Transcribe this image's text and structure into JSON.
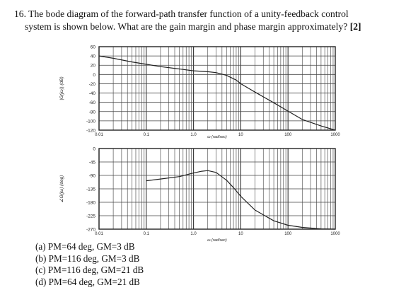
{
  "question": {
    "line1": "16. The bode diagram of the forward-path transfer function of a unity-feedback control",
    "line2": "system is shown below. What are the gain margin and phase margin approximately?",
    "marks": "[2]"
  },
  "chart_data": [
    {
      "type": "line",
      "xscale": "log",
      "xlim": [
        0.01,
        1000
      ],
      "ylim": [
        -120,
        60
      ],
      "yticks": [
        60,
        40,
        20,
        0,
        -20,
        -40,
        -60,
        -80,
        -100,
        -120
      ],
      "xticks": [
        0.01,
        0.1,
        1.0,
        10,
        100,
        1000
      ],
      "xtick_labels": [
        "0.01",
        "0.1",
        "1.0",
        "10",
        "100",
        "1000"
      ],
      "ylabel": "|G(jω)| (dB)",
      "xlabel": "ω (rad/sec)",
      "grid": true,
      "series": [
        {
          "x": [
            0.01,
            0.02,
            0.05,
            0.1,
            0.2,
            0.5,
            1,
            2,
            3,
            5,
            8,
            10,
            20,
            50,
            100,
            200,
            500,
            1000
          ],
          "y": [
            40,
            35,
            27,
            22,
            17,
            12,
            8,
            6,
            4,
            -2,
            -12,
            -20,
            -38,
            -61,
            -79,
            -97,
            -111,
            -120
          ]
        }
      ]
    },
    {
      "type": "line",
      "xscale": "log",
      "xlim": [
        0.01,
        1000
      ],
      "ylim": [
        -270,
        0
      ],
      "yticks": [
        0,
        -45,
        -90,
        -135,
        -180,
        -225,
        -270
      ],
      "xticks": [
        0.01,
        0.1,
        1.0,
        10,
        100,
        1000
      ],
      "xtick_labels": [
        "0.01",
        "0.1",
        "1.0",
        "10",
        "100",
        "1000"
      ],
      "ylabel": "∠G(jω) (deg)",
      "xlabel": "ω (rad/sec)",
      "grid": true,
      "series": [
        {
          "x": [
            0.1,
            0.2,
            0.5,
            1,
            1.5,
            2,
            3,
            5,
            7,
            10,
            20,
            50,
            100,
            200,
            500,
            1000
          ],
          "y": [
            -108,
            -102,
            -94,
            -82,
            -76,
            -74,
            -80,
            -106,
            -131,
            -160,
            -206,
            -242,
            -257,
            -264,
            -269,
            -270
          ]
        }
      ]
    }
  ],
  "options": [
    "(a) PM=64 deg, GM=3 dB",
    "(b) PM=116 deg, GM=3 dB",
    "(c) PM=116 deg, GM=21 dB",
    "(d) PM=64 deg, GM=21 dB"
  ]
}
